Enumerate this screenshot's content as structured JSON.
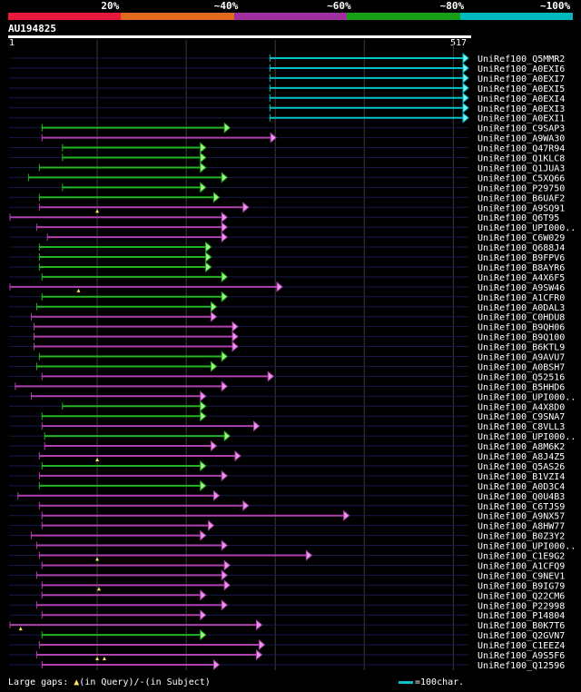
{
  "legend": {
    "segments": [
      {
        "label": "20%",
        "color": "#e8193c"
      },
      {
        "label": "~40%",
        "color": "#e0691e"
      },
      {
        "label": "~60%",
        "color": "#a030a0"
      },
      {
        "label": "~80%",
        "color": "#19a019"
      },
      {
        "label": "~100%",
        "color": "#00b8c0"
      }
    ]
  },
  "query": {
    "id": "AU194825",
    "start": "1",
    "end": "517",
    "length": 517
  },
  "footer": {
    "gaps_prefix": "Large gaps: ",
    "gaps_query": "(in Query)/",
    "gaps_subject": "(in Subject)",
    "scale_label": "=100char."
  },
  "chart_data": {
    "type": "alignment",
    "x_range": [
      1,
      517
    ],
    "hits": [
      {
        "name": "UniRef100_Q5MMR2",
        "start": 294,
        "end": 517,
        "color": "cyan",
        "query_gaps": []
      },
      {
        "name": "UniRef100_A0EXI6",
        "start": 294,
        "end": 517,
        "color": "cyan",
        "query_gaps": []
      },
      {
        "name": "UniRef100_A0EXI7",
        "start": 294,
        "end": 517,
        "color": "cyan",
        "query_gaps": []
      },
      {
        "name": "UniRef100_A0EXI5",
        "start": 294,
        "end": 517,
        "color": "cyan",
        "query_gaps": []
      },
      {
        "name": "UniRef100_A0EXI4",
        "start": 294,
        "end": 517,
        "color": "cyan",
        "query_gaps": []
      },
      {
        "name": "UniRef100_A0EXI3",
        "start": 294,
        "end": 517,
        "color": "cyan",
        "query_gaps": []
      },
      {
        "name": "UniRef100_A0EXI1",
        "start": 294,
        "end": 517,
        "color": "cyan",
        "query_gaps": []
      },
      {
        "name": "UniRef100_C9SAP3",
        "start": 38,
        "end": 249,
        "color": "green",
        "query_gaps": []
      },
      {
        "name": "UniRef100_A9WA30",
        "start": 38,
        "end": 301,
        "color": "purple",
        "query_gaps": []
      },
      {
        "name": "UniRef100_Q47R94",
        "start": 61,
        "end": 222,
        "color": "green",
        "query_gaps": []
      },
      {
        "name": "UniRef100_Q1KLC8",
        "start": 61,
        "end": 222,
        "color": "green",
        "query_gaps": []
      },
      {
        "name": "UniRef100_Q1JUA3",
        "start": 35,
        "end": 222,
        "color": "green",
        "query_gaps": []
      },
      {
        "name": "UniRef100_C5XQ66",
        "start": 23,
        "end": 246,
        "color": "green",
        "query_gaps": []
      },
      {
        "name": "UniRef100_P29750",
        "start": 61,
        "end": 222,
        "color": "green",
        "query_gaps": []
      },
      {
        "name": "UniRef100_B6UAF2",
        "start": 35,
        "end": 237,
        "color": "green",
        "query_gaps": []
      },
      {
        "name": "UniRef100_A9SQ91",
        "start": 35,
        "end": 270,
        "color": "purple",
        "query_gaps": [
          100
        ]
      },
      {
        "name": "UniRef100_Q6T95",
        "start": 2,
        "end": 246,
        "color": "purple",
        "query_gaps": []
      },
      {
        "name": "UniRef100_UPI000..",
        "start": 32,
        "end": 246,
        "color": "purple",
        "query_gaps": []
      },
      {
        "name": "UniRef100_C6W029",
        "start": 44,
        "end": 246,
        "color": "purple",
        "query_gaps": []
      },
      {
        "name": "UniRef100_Q688J4",
        "start": 35,
        "end": 228,
        "color": "green",
        "query_gaps": []
      },
      {
        "name": "UniRef100_B9FPV6",
        "start": 35,
        "end": 228,
        "color": "green",
        "query_gaps": []
      },
      {
        "name": "UniRef100_B8AYR6",
        "start": 35,
        "end": 228,
        "color": "green",
        "query_gaps": []
      },
      {
        "name": "UniRef100_A4X6F5",
        "start": 38,
        "end": 246,
        "color": "green",
        "query_gaps": []
      },
      {
        "name": "UniRef100_A9SW46",
        "start": 2,
        "end": 308,
        "color": "purple",
        "query_gaps": [
          79
        ]
      },
      {
        "name": "UniRef100_A1CFR0",
        "start": 38,
        "end": 246,
        "color": "green",
        "query_gaps": []
      },
      {
        "name": "UniRef100_A0DAL3",
        "start": 32,
        "end": 234,
        "color": "green",
        "query_gaps": []
      },
      {
        "name": "UniRef100_C0HDU8",
        "start": 26,
        "end": 234,
        "color": "purple",
        "query_gaps": []
      },
      {
        "name": "UniRef100_B9QH06",
        "start": 29,
        "end": 258,
        "color": "purple",
        "query_gaps": []
      },
      {
        "name": "UniRef100_B9Q100",
        "start": 29,
        "end": 258,
        "color": "purple",
        "query_gaps": []
      },
      {
        "name": "UniRef100_B6KTL9",
        "start": 29,
        "end": 258,
        "color": "purple",
        "query_gaps": []
      },
      {
        "name": "UniRef100_A9AVU7",
        "start": 35,
        "end": 246,
        "color": "green",
        "query_gaps": []
      },
      {
        "name": "UniRef100_A0BSH7",
        "start": 32,
        "end": 234,
        "color": "green",
        "query_gaps": []
      },
      {
        "name": "UniRef100_Q52516",
        "start": 38,
        "end": 298,
        "color": "purple",
        "query_gaps": []
      },
      {
        "name": "UniRef100_B5HHD6",
        "start": 8,
        "end": 246,
        "color": "purple",
        "query_gaps": []
      },
      {
        "name": "UniRef100_UPI000..",
        "start": 26,
        "end": 222,
        "color": "purple",
        "query_gaps": []
      },
      {
        "name": "UniRef100_A4X8D0",
        "start": 61,
        "end": 222,
        "color": "green",
        "query_gaps": []
      },
      {
        "name": "UniRef100_C9SNA7",
        "start": 38,
        "end": 222,
        "color": "green",
        "query_gaps": []
      },
      {
        "name": "UniRef100_C8VLL3",
        "start": 38,
        "end": 282,
        "color": "purple",
        "query_gaps": []
      },
      {
        "name": "UniRef100_UPI000..",
        "start": 41,
        "end": 249,
        "color": "green",
        "query_gaps": []
      },
      {
        "name": "UniRef100_A8M6K2",
        "start": 41,
        "end": 234,
        "color": "purple",
        "query_gaps": []
      },
      {
        "name": "UniRef100_A8J4Z5",
        "start": 35,
        "end": 261,
        "color": "purple",
        "query_gaps": [
          100
        ]
      },
      {
        "name": "UniRef100_Q5AS26",
        "start": 38,
        "end": 222,
        "color": "green",
        "query_gaps": []
      },
      {
        "name": "UniRef100_B1VZI4",
        "start": 35,
        "end": 246,
        "color": "purple",
        "query_gaps": []
      },
      {
        "name": "UniRef100_A0D3C4",
        "start": 35,
        "end": 222,
        "color": "green",
        "query_gaps": []
      },
      {
        "name": "UniRef100_Q0U4B3",
        "start": 11,
        "end": 237,
        "color": "purple",
        "query_gaps": []
      },
      {
        "name": "UniRef100_C6TJS9",
        "start": 35,
        "end": 270,
        "color": "purple",
        "query_gaps": []
      },
      {
        "name": "UniRef100_A9NX57",
        "start": 38,
        "end": 383,
        "color": "purple",
        "query_gaps": []
      },
      {
        "name": "UniRef100_A8HW77",
        "start": 38,
        "end": 231,
        "color": "purple",
        "query_gaps": []
      },
      {
        "name": "UniRef100_B0Z3Y2",
        "start": 26,
        "end": 222,
        "color": "purple",
        "query_gaps": []
      },
      {
        "name": "UniRef100_UPI000..",
        "start": 32,
        "end": 246,
        "color": "purple",
        "query_gaps": []
      },
      {
        "name": "UniRef100_C1E9G2",
        "start": 35,
        "end": 341,
        "color": "purple",
        "query_gaps": [
          100
        ]
      },
      {
        "name": "UniRef100_A1CFQ9",
        "start": 38,
        "end": 249,
        "color": "purple",
        "query_gaps": []
      },
      {
        "name": "UniRef100_C9NEV1",
        "start": 32,
        "end": 246,
        "color": "purple",
        "query_gaps": []
      },
      {
        "name": "UniRef100_B9IG79",
        "start": 38,
        "end": 249,
        "color": "purple",
        "query_gaps": [
          102
        ]
      },
      {
        "name": "UniRef100_Q22CM6",
        "start": 38,
        "end": 222,
        "color": "purple",
        "query_gaps": []
      },
      {
        "name": "UniRef100_P22998",
        "start": 32,
        "end": 246,
        "color": "purple",
        "query_gaps": []
      },
      {
        "name": "UniRef100_P14804",
        "start": 38,
        "end": 222,
        "color": "purple",
        "query_gaps": []
      },
      {
        "name": "UniRef100_B0K7T6",
        "start": 2,
        "end": 285,
        "color": "purple",
        "query_gaps": [
          14
        ]
      },
      {
        "name": "UniRef100_Q2GVN7",
        "start": 38,
        "end": 222,
        "color": "green",
        "query_gaps": []
      },
      {
        "name": "UniRef100_C1EEZ4",
        "start": 35,
        "end": 288,
        "color": "purple",
        "query_gaps": []
      },
      {
        "name": "UniRef100_A9S5F6",
        "start": 32,
        "end": 285,
        "color": "purple",
        "query_gaps": [
          100,
          108
        ]
      },
      {
        "name": "UniRef100_Q12596",
        "start": 38,
        "end": 237,
        "color": "purple",
        "query_gaps": []
      }
    ]
  }
}
